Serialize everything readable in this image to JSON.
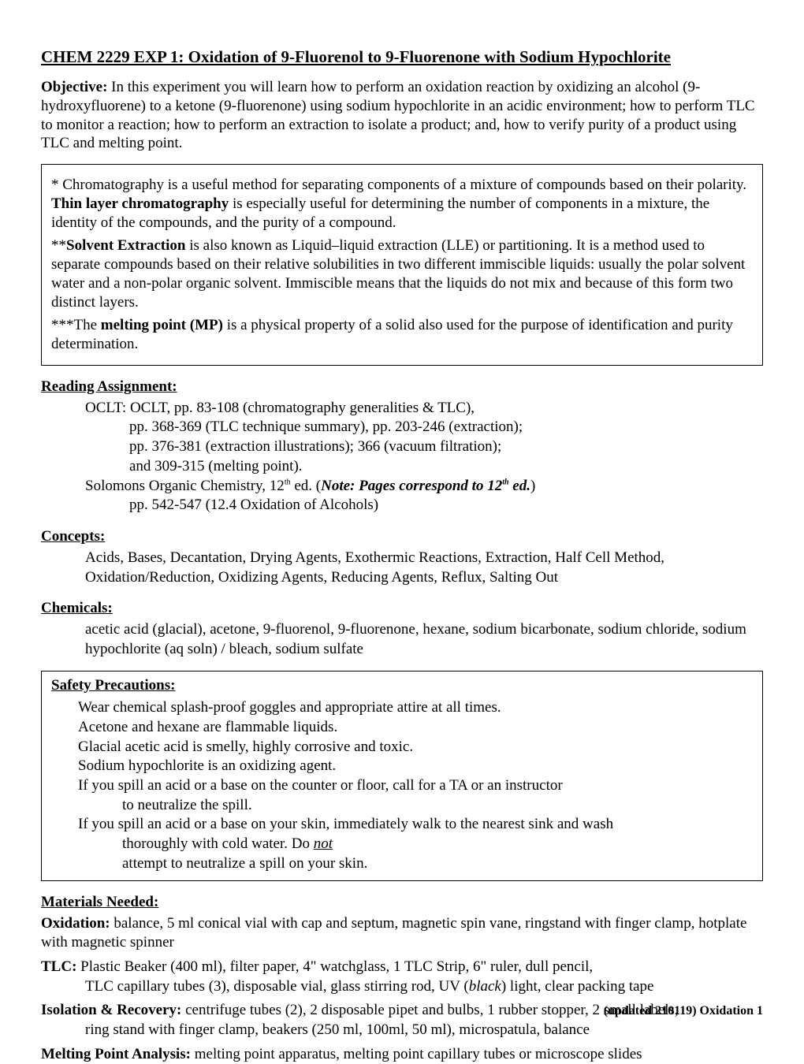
{
  "title": "CHEM 2229 EXP 1:  Oxidation of 9-Fluorenol to 9-Fluorenone with Sodium Hypochlorite",
  "objective": {
    "label": "Objective:",
    "text": "  In this experiment you will learn how to perform an oxidation reaction by oxidizing an alcohol (9-hydroxyfluorene) to a ketone (9-fluorenone) using sodium hypochlorite in an acidic environment; how to perform TLC to monitor a reaction; how to perform an extraction to isolate a product; and, how to verify purity of a product using TLC and melting point."
  },
  "notes": {
    "chroma_pre": "* Chromatography is a useful method for separating components of a mixture of compounds based on their polarity.  ",
    "chroma_bold": "Thin layer chromatography",
    "chroma_post": " is especially useful for determining the number of components in a mixture, the identity of the compounds, and the purity of a compound.",
    "solvent_pre": "**",
    "solvent_bold": "Solvent Extraction",
    "solvent_post": " is also known as Liquid–liquid extraction (LLE) or partitioning.  It is a method used to separate compounds based on their relative solubilities in two different immiscible liquids:  usually the polar solvent water and a non-polar organic solvent.  Immiscible means that the liquids do not mix and because of this form two distinct layers.",
    "mp_pre": "***The ",
    "mp_bold": "melting point (MP)",
    "mp_post": " is a physical property of a solid also used for the purpose of identification and purity determination."
  },
  "reading": {
    "head": "Reading Assignment:",
    "l1": "OCLT:  OCLT, pp. 83-108 (chromatography generalities & TLC),",
    "l2": "pp.  368-369 (TLC technique summary), pp. 203-246 (extraction);",
    "l3": "pp. 376-381 (extraction illustrations); 366 (vacuum filtration);",
    "l4": "and 309-315 (melting point).",
    "l5a": "Solomons Organic Chemistry, 12",
    "l5sup": "th",
    "l5b": " ed.  (",
    "l5note1": "Note:  Pages correspond to 12",
    "l5notesup": "th",
    "l5note2": " ed.",
    "l5c": ")",
    "l6": "pp. 542-547 (12.4 Oxidation of Alcohols)"
  },
  "concepts": {
    "head": "Concepts:",
    "text": "Acids, Bases, Decantation, Drying Agents, Exothermic Reactions, Extraction, Half Cell Method, Oxidation/Reduction, Oxidizing Agents, Reducing Agents, Reflux, Salting Out"
  },
  "chemicals": {
    "head": "Chemicals:",
    "text": "acetic acid (glacial), acetone, 9-fluorenol, 9-fluorenone, hexane, sodium bicarbonate, sodium chloride, sodium hypochlorite (aq soln) / bleach, sodium sulfate"
  },
  "safety": {
    "head": "Safety Precautions:",
    "l1": "Wear chemical splash-proof goggles and appropriate attire at all times.",
    "l2": "Acetone and hexane are flammable liquids.",
    "l3": "Glacial acetic acid is smelly, highly corrosive and toxic.",
    "l4": "Sodium hypochlorite is an oxidizing agent.",
    "l5": "If you spill an acid or a base on the counter or floor, call for a TA or an instructor",
    "l5b": "to neutralize the spill.",
    "l6": "If you spill an acid or a base on your skin, immediately walk to the nearest sink and wash",
    "l6b": "thoroughly with cold water.  Do ",
    "l6u": "not",
    "l6c": "attempt to neutralize a spill on your skin."
  },
  "materials": {
    "head": "Materials Needed:",
    "ox_label": "Oxidation:",
    "ox_text": "  balance, 5 ml conical vial with cap and septum, magnetic spin vane, ringstand with finger clamp, hotplate with magnetic spinner",
    "tlc_label": "TLC:",
    "tlc_text1": "  Plastic Beaker (400 ml), filter paper, 4\" watchglass, 1 TLC Strip, 6\" ruler, dull pencil,",
    "tlc_text2a": "TLC capillary tubes (3), disposable vial, glass stirring rod, UV (",
    "tlc_black": "black",
    "tlc_text2b": ") light, clear packing tape",
    "iso_label": "Isolation & Recovery:",
    "iso_text1": "  centrifuge tubes (2), 2 disposable pipet and bulbs, 1 rubber stopper, 2 small labels,",
    "iso_text2": "ring stand with finger clamp, beakers (250 ml, 100ml, 50 ml), microspatula, balance",
    "mp_label": "Melting Point Analysis:",
    "mp_text": "  melting point apparatus, melting point capillary tubes or microscope slides"
  },
  "footer": "(updated 210119) Oxidation 1"
}
